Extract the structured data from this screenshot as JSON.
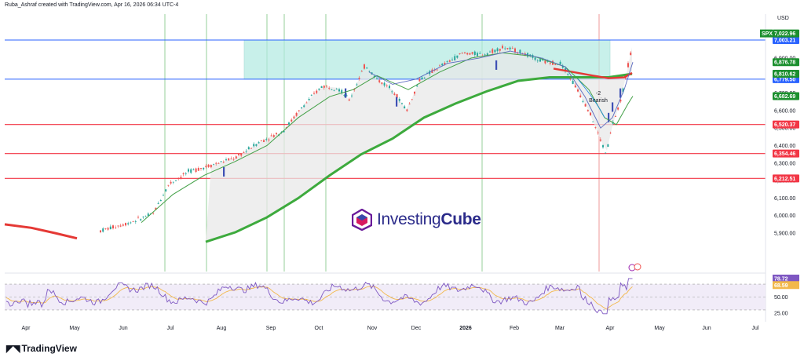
{
  "header": {
    "author_line": "Ruba_Ashraf created with TradingView.com, Apr 16, 2026 06:34 UTC-4",
    "currency": "USD"
  },
  "brand": {
    "tradingview": "TradingView",
    "watermark_a": "Investing",
    "watermark_b": "Cube"
  },
  "colors": {
    "up": "#26a69a",
    "down": "#ef5350",
    "zone": "#b2ebe2",
    "blue": "#2962ff",
    "red": "#f23645",
    "green": "#4caf50",
    "ma200": "#3daa3d",
    "ma50": "#e53935",
    "rsi": "#7e57c2"
  },
  "chart_data": [
    {
      "type": "line",
      "symbol": "SPX",
      "y_ticks": [
        5900,
        6000,
        6100,
        6200,
        6300,
        6400,
        6500,
        6600,
        6700,
        6800,
        6900,
        7000
      ],
      "x_ticks": [
        "Apr",
        "May",
        "Jun",
        "Jul",
        "Aug",
        "Sep",
        "Oct",
        "Nov",
        "Dec",
        "2026",
        "Feb",
        "Mar",
        "Apr",
        "May",
        "Jun",
        "Jul"
      ],
      "ylim": [
        5850,
        7080
      ],
      "horizontal_levels": [
        {
          "value": 7003.21,
          "label": "7,003.21",
          "color": "#2962ff"
        },
        {
          "value": 6779.5,
          "label": "6,779.50",
          "color": "#2962ff"
        },
        {
          "value": 6520.37,
          "label": "6,520.37",
          "color": "#f23645"
        },
        {
          "value": 6354.46,
          "label": "6,354.46",
          "color": "#f23645"
        },
        {
          "value": 6212.51,
          "label": "6,212.51",
          "color": "#f23645"
        }
      ],
      "price_tags": [
        {
          "label": "SPX",
          "value": 7022.96,
          "text": "7,022.96",
          "color": "#1b8f2e"
        },
        {
          "value": 6876.78,
          "text": "6,876.78",
          "color": "#1b8f2e"
        },
        {
          "value": 6810.62,
          "text": "6,810.62",
          "color": "#1b8f2e"
        },
        {
          "value": 6682.69,
          "text": "6,682.69",
          "color": "#1b8f2e"
        }
      ],
      "zone": {
        "top": 7003.21,
        "bottom": 6779.5,
        "from": "Aug",
        "to": "Apr"
      },
      "annotation": {
        "text_1": "-2",
        "text_2": "Bearish"
      },
      "price_path": [
        [
          "Apr",
          5870
        ],
        [
          "May",
          5910
        ],
        [
          "Jun",
          6000
        ],
        [
          "Jul",
          6230
        ],
        [
          "Aug",
          6330
        ],
        [
          "Sep",
          6480
        ],
        [
          "Oct",
          6730
        ],
        [
          "Nov",
          6880
        ],
        [
          "Nov",
          6560
        ],
        [
          "Dec",
          6850
        ],
        [
          "2026",
          6940
        ],
        [
          "Feb",
          6950
        ],
        [
          "Mar",
          6820
        ],
        [
          "Mar",
          6420
        ],
        [
          "Apr",
          6720
        ],
        [
          "Apr",
          7022.96
        ]
      ],
      "ma200_path": [
        [
          "Jul",
          5850
        ],
        [
          "Aug",
          5930
        ],
        [
          "Sep",
          6110
        ],
        [
          "Oct",
          6310
        ],
        [
          "Nov",
          6500
        ],
        [
          "Dec",
          6600
        ],
        [
          "2026",
          6700
        ],
        [
          "Feb",
          6790
        ],
        [
          "Mar",
          6810
        ],
        [
          "Apr",
          6810
        ]
      ],
      "ma50_path": [
        [
          "Apr",
          5880
        ],
        [
          "May",
          5850
        ]
      ]
    },
    {
      "type": "line",
      "name": "RSI",
      "ylim": [
        20,
        85
      ],
      "y_ticks": [
        25,
        50
      ],
      "levels": [
        {
          "value": 78.72,
          "text": "78.72",
          "color": "#7e57c2"
        },
        {
          "value": 68.59,
          "text": "68.59",
          "color": "#f2b84b"
        }
      ],
      "rsi_path": [
        [
          "Apr",
          42
        ],
        [
          "May",
          55
        ],
        [
          "Jun",
          62
        ],
        [
          "Jul",
          70
        ],
        [
          "Aug",
          48
        ],
        [
          "Sep",
          66
        ],
        [
          "Oct",
          72
        ],
        [
          "Nov",
          40
        ],
        [
          "Dec",
          60
        ],
        [
          "2026",
          64
        ],
        [
          "Feb",
          52
        ],
        [
          "Mar",
          35
        ],
        [
          "Apr",
          78.72
        ]
      ]
    }
  ]
}
